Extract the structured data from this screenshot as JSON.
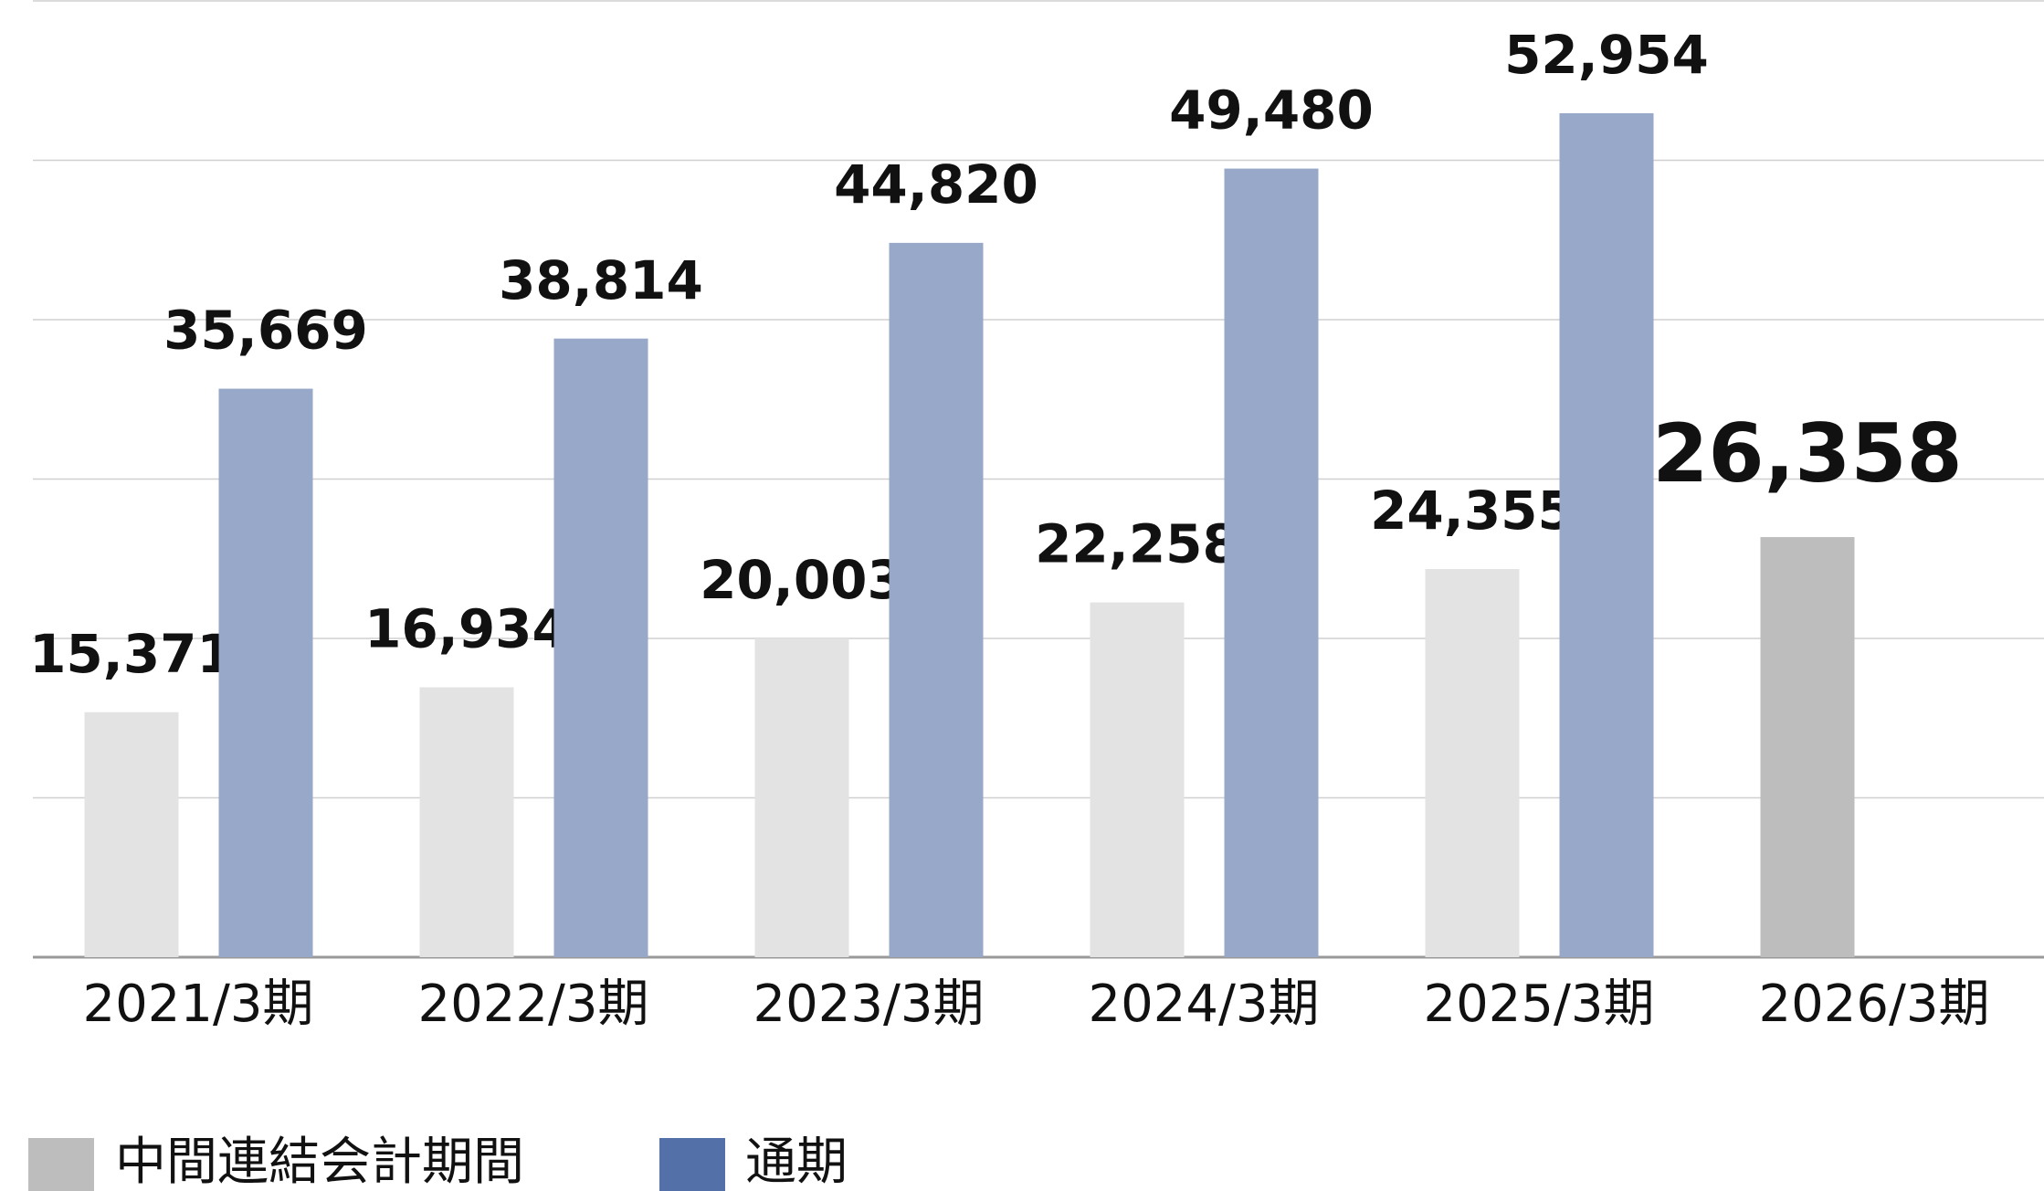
{
  "chart_data": {
    "type": "bar",
    "categories": [
      "2021/3期",
      "2022/3期",
      "2023/3期",
      "2024/3期",
      "2025/3期",
      "2026/3期"
    ],
    "series": [
      {
        "name": "中間連結会計期間",
        "color": "#bdbdbd",
        "bar_colors": [
          "#e3e3e3",
          "#e3e3e3",
          "#e3e3e3",
          "#e3e3e3",
          "#e3e3e3",
          "#bdbdbd"
        ],
        "values": [
          15371,
          16934,
          20003,
          22258,
          24355,
          26358
        ],
        "value_labels": [
          "15,371",
          "16,934",
          "20,003",
          "22,258",
          "24,355",
          "26,358"
        ]
      },
      {
        "name": "通期",
        "color": "#98a8c8",
        "legend_color": "#5470a8",
        "values": [
          35669,
          38814,
          44820,
          49480,
          52954,
          null
        ],
        "value_labels": [
          "35,669",
          "38,814",
          "44,820",
          "49,480",
          "52,954",
          null
        ]
      }
    ],
    "ylim": [
      0,
      60000
    ],
    "yticks": [
      0,
      10000,
      20000,
      30000,
      40000,
      50000,
      60000
    ],
    "grid": true
  }
}
